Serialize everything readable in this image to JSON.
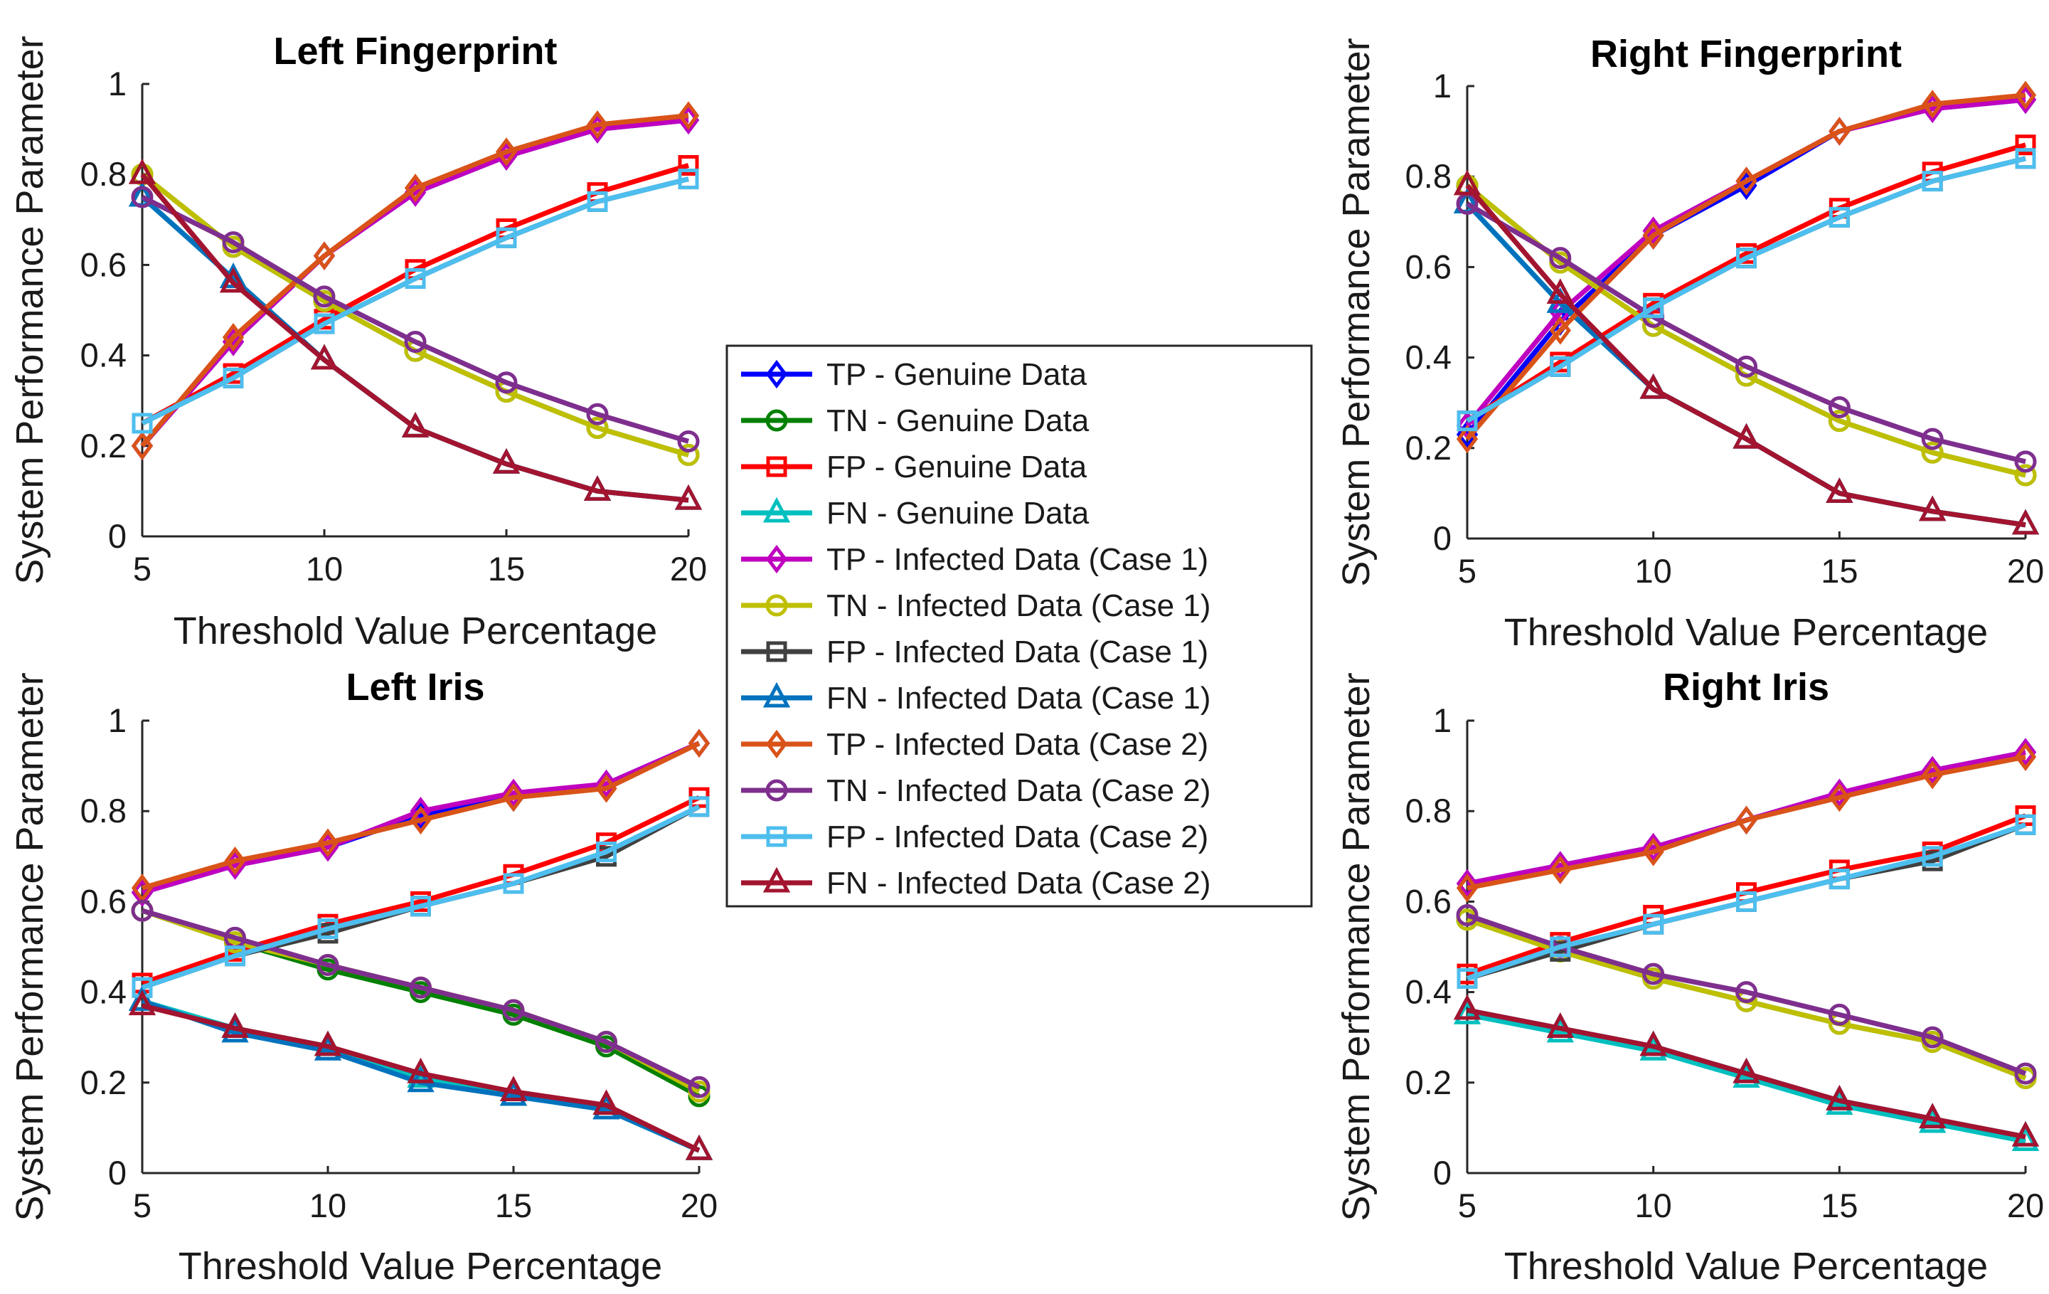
{
  "series_styles": [
    {
      "name": "TP - Genuine Data",
      "color": "#0000ff",
      "marker": "diamond"
    },
    {
      "name": "TN - Genuine Data",
      "color": "#008000",
      "marker": "circle"
    },
    {
      "name": "FP - Genuine Data",
      "color": "#ff0000",
      "marker": "square"
    },
    {
      "name": "FN - Genuine Data",
      "color": "#00bfbf",
      "marker": "triangle"
    },
    {
      "name": "TP - Infected Data (Case 1)",
      "color": "#bf00bf",
      "marker": "diamond"
    },
    {
      "name": "TN - Infected Data (Case 1)",
      "color": "#bfbf00",
      "marker": "circle"
    },
    {
      "name": "FP - Infected Data (Case 1)",
      "color": "#404040",
      "marker": "square"
    },
    {
      "name": "FN - Infected Data (Case 1)",
      "color": "#0072bd",
      "marker": "triangle"
    },
    {
      "name": "TP - Infected Data (Case 2)",
      "color": "#d95319",
      "marker": "diamond"
    },
    {
      "name": "TN - Infected Data (Case 2)",
      "color": "#7e2f8e",
      "marker": "circle"
    },
    {
      "name": "FP - Infected Data (Case 2)",
      "color": "#4dbeee",
      "marker": "square"
    },
    {
      "name": "FN - Infected Data (Case 2)",
      "color": "#a2142f",
      "marker": "triangle"
    }
  ],
  "chart_data": [
    {
      "type": "line",
      "title": "Left Fingerprint",
      "xlabel": "Threshold Value Percentage",
      "ylabel": "System Performance Parameter",
      "xlim": [
        5,
        20
      ],
      "ylim": [
        0,
        1
      ],
      "xticks": [
        5,
        10,
        15,
        20
      ],
      "yticks": [
        0,
        0.2,
        0.4,
        0.6,
        0.8,
        1
      ],
      "x": [
        5,
        7.5,
        10,
        12.5,
        15,
        17.5,
        20
      ],
      "series": [
        {
          "name": "TP - Genuine Data",
          "values": [
            0.2,
            0.43,
            0.62,
            0.76,
            0.84,
            0.9,
            0.92
          ]
        },
        {
          "name": "TN - Genuine Data",
          "values": [
            0.8,
            0.64,
            0.52,
            0.41,
            0.32,
            0.24,
            0.18
          ]
        },
        {
          "name": "FP - Genuine Data",
          "values": [
            0.25,
            0.36,
            0.48,
            0.59,
            0.68,
            0.76,
            0.82
          ]
        },
        {
          "name": "FN - Genuine Data",
          "values": [
            0.75,
            0.57,
            0.39,
            0.24,
            0.16,
            0.1,
            0.08
          ]
        },
        {
          "name": "TP - Infected Data (Case 1)",
          "values": [
            0.2,
            0.43,
            0.62,
            0.76,
            0.84,
            0.9,
            0.92
          ]
        },
        {
          "name": "TN - Infected Data (Case 1)",
          "values": [
            0.8,
            0.64,
            0.52,
            0.41,
            0.32,
            0.24,
            0.18
          ]
        },
        {
          "name": "FP - Infected Data (Case 1)",
          "values": [
            0.25,
            0.35,
            0.47,
            0.57,
            0.66,
            0.74,
            0.79
          ]
        },
        {
          "name": "FN - Infected Data (Case 1)",
          "values": [
            0.75,
            0.57,
            0.39,
            0.24,
            0.16,
            0.1,
            0.08
          ]
        },
        {
          "name": "TP - Infected Data (Case 2)",
          "values": [
            0.2,
            0.44,
            0.62,
            0.77,
            0.85,
            0.91,
            0.93
          ]
        },
        {
          "name": "TN - Infected Data (Case 2)",
          "values": [
            0.75,
            0.65,
            0.53,
            0.43,
            0.34,
            0.27,
            0.21
          ]
        },
        {
          "name": "FP - Infected Data (Case 2)",
          "values": [
            0.25,
            0.35,
            0.47,
            0.57,
            0.66,
            0.74,
            0.79
          ]
        },
        {
          "name": "FN - Infected Data (Case 2)",
          "values": [
            0.8,
            0.56,
            0.39,
            0.24,
            0.16,
            0.1,
            0.08
          ]
        }
      ]
    },
    {
      "type": "line",
      "title": "Right Fingerprint",
      "xlabel": "Threshold Value Percentage",
      "ylabel": "System Performance Parameter",
      "xlim": [
        5,
        20
      ],
      "ylim": [
        0,
        1
      ],
      "xticks": [
        5,
        10,
        15,
        20
      ],
      "yticks": [
        0,
        0.2,
        0.4,
        0.6,
        0.8,
        1
      ],
      "x": [
        5,
        7.5,
        10,
        12.5,
        15,
        17.5,
        20
      ],
      "series": [
        {
          "name": "TP - Genuine Data",
          "values": [
            0.23,
            0.48,
            0.67,
            0.78,
            0.9,
            0.95,
            0.97
          ]
        },
        {
          "name": "TN - Genuine Data",
          "values": [
            0.78,
            0.61,
            0.47,
            0.36,
            0.26,
            0.19,
            0.14
          ]
        },
        {
          "name": "FP - Genuine Data",
          "values": [
            0.26,
            0.39,
            0.52,
            0.63,
            0.73,
            0.81,
            0.87
          ]
        },
        {
          "name": "FN - Genuine Data",
          "values": [
            0.74,
            0.52,
            0.33,
            0.22,
            0.1,
            0.06,
            0.03
          ]
        },
        {
          "name": "TP - Infected Data (Case 1)",
          "values": [
            0.25,
            0.5,
            0.68,
            0.79,
            0.9,
            0.95,
            0.97
          ]
        },
        {
          "name": "TN - Infected Data (Case 1)",
          "values": [
            0.78,
            0.61,
            0.47,
            0.36,
            0.26,
            0.19,
            0.14
          ]
        },
        {
          "name": "FP - Infected Data (Case 1)",
          "values": [
            0.26,
            0.38,
            0.51,
            0.62,
            0.71,
            0.79,
            0.84
          ]
        },
        {
          "name": "FN - Infected Data (Case 1)",
          "values": [
            0.74,
            0.52,
            0.33,
            0.22,
            0.1,
            0.06,
            0.03
          ]
        },
        {
          "name": "TP - Infected Data (Case 2)",
          "values": [
            0.22,
            0.46,
            0.67,
            0.79,
            0.9,
            0.96,
            0.98
          ]
        },
        {
          "name": "TN - Infected Data (Case 2)",
          "values": [
            0.74,
            0.62,
            0.49,
            0.38,
            0.29,
            0.22,
            0.17
          ]
        },
        {
          "name": "FP - Infected Data (Case 2)",
          "values": [
            0.26,
            0.38,
            0.51,
            0.62,
            0.71,
            0.79,
            0.84
          ]
        },
        {
          "name": "FN - Infected Data (Case 2)",
          "values": [
            0.78,
            0.54,
            0.33,
            0.22,
            0.1,
            0.06,
            0.03
          ]
        }
      ]
    },
    {
      "type": "line",
      "title": "Left Iris",
      "xlabel": "Threshold Value Percentage",
      "ylabel": "System Performance Parameter",
      "xlim": [
        5,
        20
      ],
      "ylim": [
        0,
        1
      ],
      "xticks": [
        5,
        10,
        15,
        20
      ],
      "yticks": [
        0,
        0.2,
        0.4,
        0.6,
        0.8,
        1
      ],
      "x": [
        5,
        7.5,
        10,
        12.5,
        15,
        17.5,
        20
      ],
      "series": [
        {
          "name": "TP - Genuine Data",
          "values": [
            0.62,
            0.68,
            0.72,
            0.79,
            0.83,
            0.86,
            0.95
          ]
        },
        {
          "name": "TN - Genuine Data",
          "values": [
            0.58,
            0.51,
            0.45,
            0.4,
            0.35,
            0.28,
            0.17
          ]
        },
        {
          "name": "FP - Genuine Data",
          "values": [
            0.42,
            0.49,
            0.55,
            0.6,
            0.66,
            0.73,
            0.83
          ]
        },
        {
          "name": "FN - Genuine Data",
          "values": [
            0.38,
            0.32,
            0.28,
            0.21,
            0.17,
            0.14,
            0.05
          ]
        },
        {
          "name": "TP - Infected Data (Case 1)",
          "values": [
            0.62,
            0.68,
            0.72,
            0.8,
            0.84,
            0.86,
            0.95
          ]
        },
        {
          "name": "TN - Infected Data (Case 1)",
          "values": [
            0.58,
            0.51,
            0.46,
            0.41,
            0.36,
            0.29,
            0.18
          ]
        },
        {
          "name": "FP - Infected Data (Case 1)",
          "values": [
            0.41,
            0.48,
            0.53,
            0.59,
            0.64,
            0.7,
            0.81
          ]
        },
        {
          "name": "FN - Infected Data (Case 1)",
          "values": [
            0.38,
            0.31,
            0.27,
            0.2,
            0.17,
            0.14,
            0.05
          ]
        },
        {
          "name": "TP - Infected Data (Case 2)",
          "values": [
            0.63,
            0.69,
            0.73,
            0.78,
            0.83,
            0.85,
            0.95
          ]
        },
        {
          "name": "TN - Infected Data (Case 2)",
          "values": [
            0.58,
            0.52,
            0.46,
            0.41,
            0.36,
            0.29,
            0.19
          ]
        },
        {
          "name": "FP - Infected Data (Case 2)",
          "values": [
            0.41,
            0.48,
            0.54,
            0.59,
            0.64,
            0.71,
            0.81
          ]
        },
        {
          "name": "FN - Infected Data (Case 2)",
          "values": [
            0.37,
            0.32,
            0.28,
            0.22,
            0.18,
            0.15,
            0.05
          ]
        }
      ]
    },
    {
      "type": "line",
      "title": "Right Iris",
      "xlabel": "Threshold Value Percentage",
      "ylabel": "System Performance Parameter",
      "xlim": [
        5,
        20
      ],
      "ylim": [
        0,
        1
      ],
      "xticks": [
        5,
        10,
        15,
        20
      ],
      "yticks": [
        0,
        0.2,
        0.4,
        0.6,
        0.8,
        1
      ],
      "x": [
        5,
        7.5,
        10,
        12.5,
        15,
        17.5,
        20
      ],
      "series": [
        {
          "name": "TP - Genuine Data",
          "values": [
            0.64,
            0.68,
            0.72,
            0.78,
            0.84,
            0.89,
            0.93
          ]
        },
        {
          "name": "TN - Genuine Data",
          "values": [
            0.56,
            0.49,
            0.43,
            0.38,
            0.33,
            0.29,
            0.21
          ]
        },
        {
          "name": "FP - Genuine Data",
          "values": [
            0.44,
            0.51,
            0.57,
            0.62,
            0.67,
            0.71,
            0.79
          ]
        },
        {
          "name": "FN - Genuine Data",
          "values": [
            0.35,
            0.31,
            0.27,
            0.21,
            0.15,
            0.11,
            0.07
          ]
        },
        {
          "name": "TP - Infected Data (Case 1)",
          "values": [
            0.64,
            0.68,
            0.72,
            0.78,
            0.84,
            0.89,
            0.93
          ]
        },
        {
          "name": "TN - Infected Data (Case 1)",
          "values": [
            0.56,
            0.49,
            0.43,
            0.38,
            0.33,
            0.29,
            0.21
          ]
        },
        {
          "name": "FP - Infected Data (Case 1)",
          "values": [
            0.43,
            0.49,
            0.55,
            0.6,
            0.65,
            0.69,
            0.77
          ]
        },
        {
          "name": "FN - Infected Data (Case 1)",
          "values": [
            0.36,
            0.32,
            0.28,
            0.22,
            0.16,
            0.12,
            0.08
          ]
        },
        {
          "name": "TP - Infected Data (Case 2)",
          "values": [
            0.63,
            0.67,
            0.71,
            0.78,
            0.83,
            0.88,
            0.92
          ]
        },
        {
          "name": "TN - Infected Data (Case 2)",
          "values": [
            0.57,
            0.5,
            0.44,
            0.4,
            0.35,
            0.3,
            0.22
          ]
        },
        {
          "name": "FP - Infected Data (Case 2)",
          "values": [
            0.43,
            0.5,
            0.55,
            0.6,
            0.65,
            0.7,
            0.77
          ]
        },
        {
          "name": "FN - Infected Data (Case 2)",
          "values": [
            0.36,
            0.32,
            0.28,
            0.22,
            0.16,
            0.12,
            0.08
          ]
        }
      ]
    }
  ]
}
